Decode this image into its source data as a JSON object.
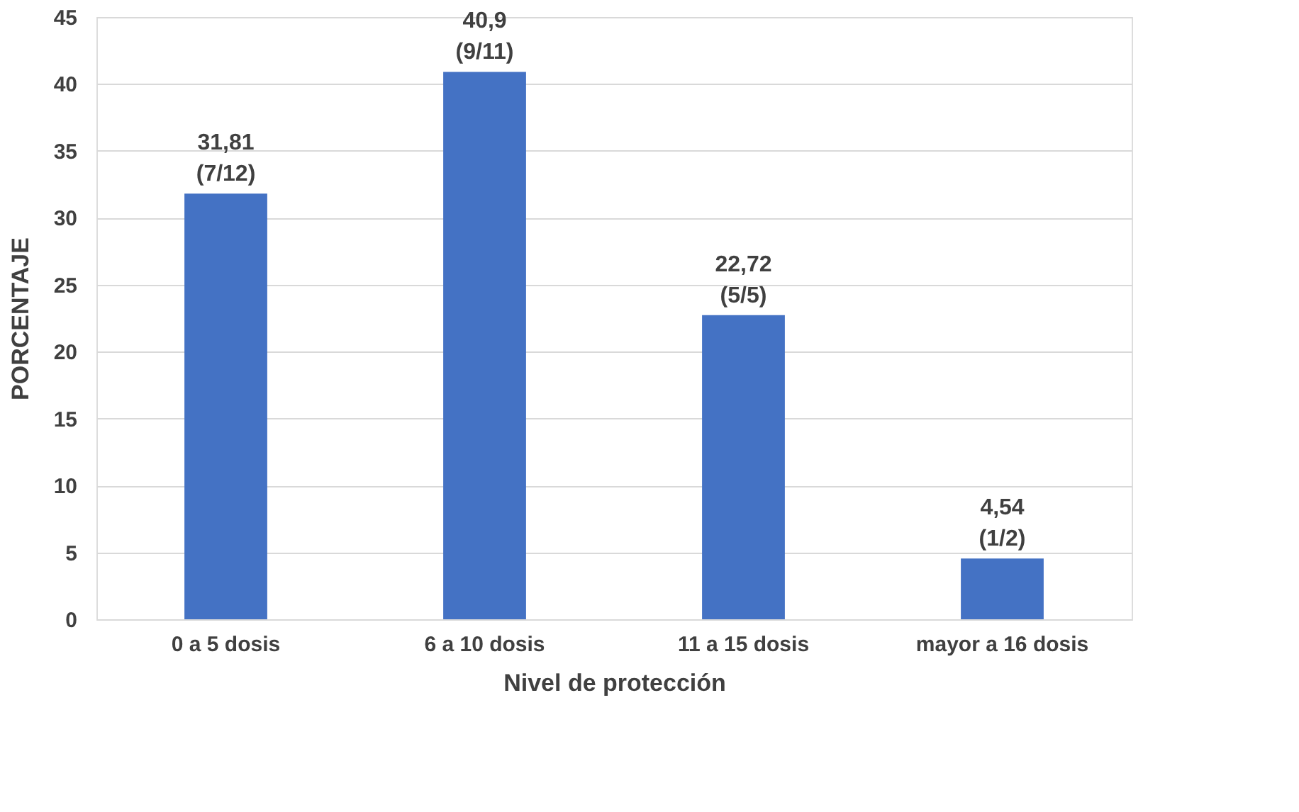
{
  "chart_data": {
    "type": "bar",
    "xlabel": "Nivel de protección",
    "ylabel": "PORCENTAJE",
    "categories": [
      "0 a 5 dosis",
      "6 a 10 dosis",
      "11 a 15 dosis",
      "mayor a 16 dosis"
    ],
    "values": [
      31.81,
      40.9,
      22.72,
      4.54
    ],
    "value_labels": [
      "31,81\n(7/12)",
      "40,9\n(9/11)",
      "22,72\n(5/5)",
      "4,54\n(1/2)"
    ],
    "color": "#4472c4",
    "ylim": [
      0,
      45
    ],
    "yticks": [
      0,
      5,
      10,
      15,
      20,
      25,
      30,
      35,
      40,
      45
    ],
    "grid": "y"
  }
}
